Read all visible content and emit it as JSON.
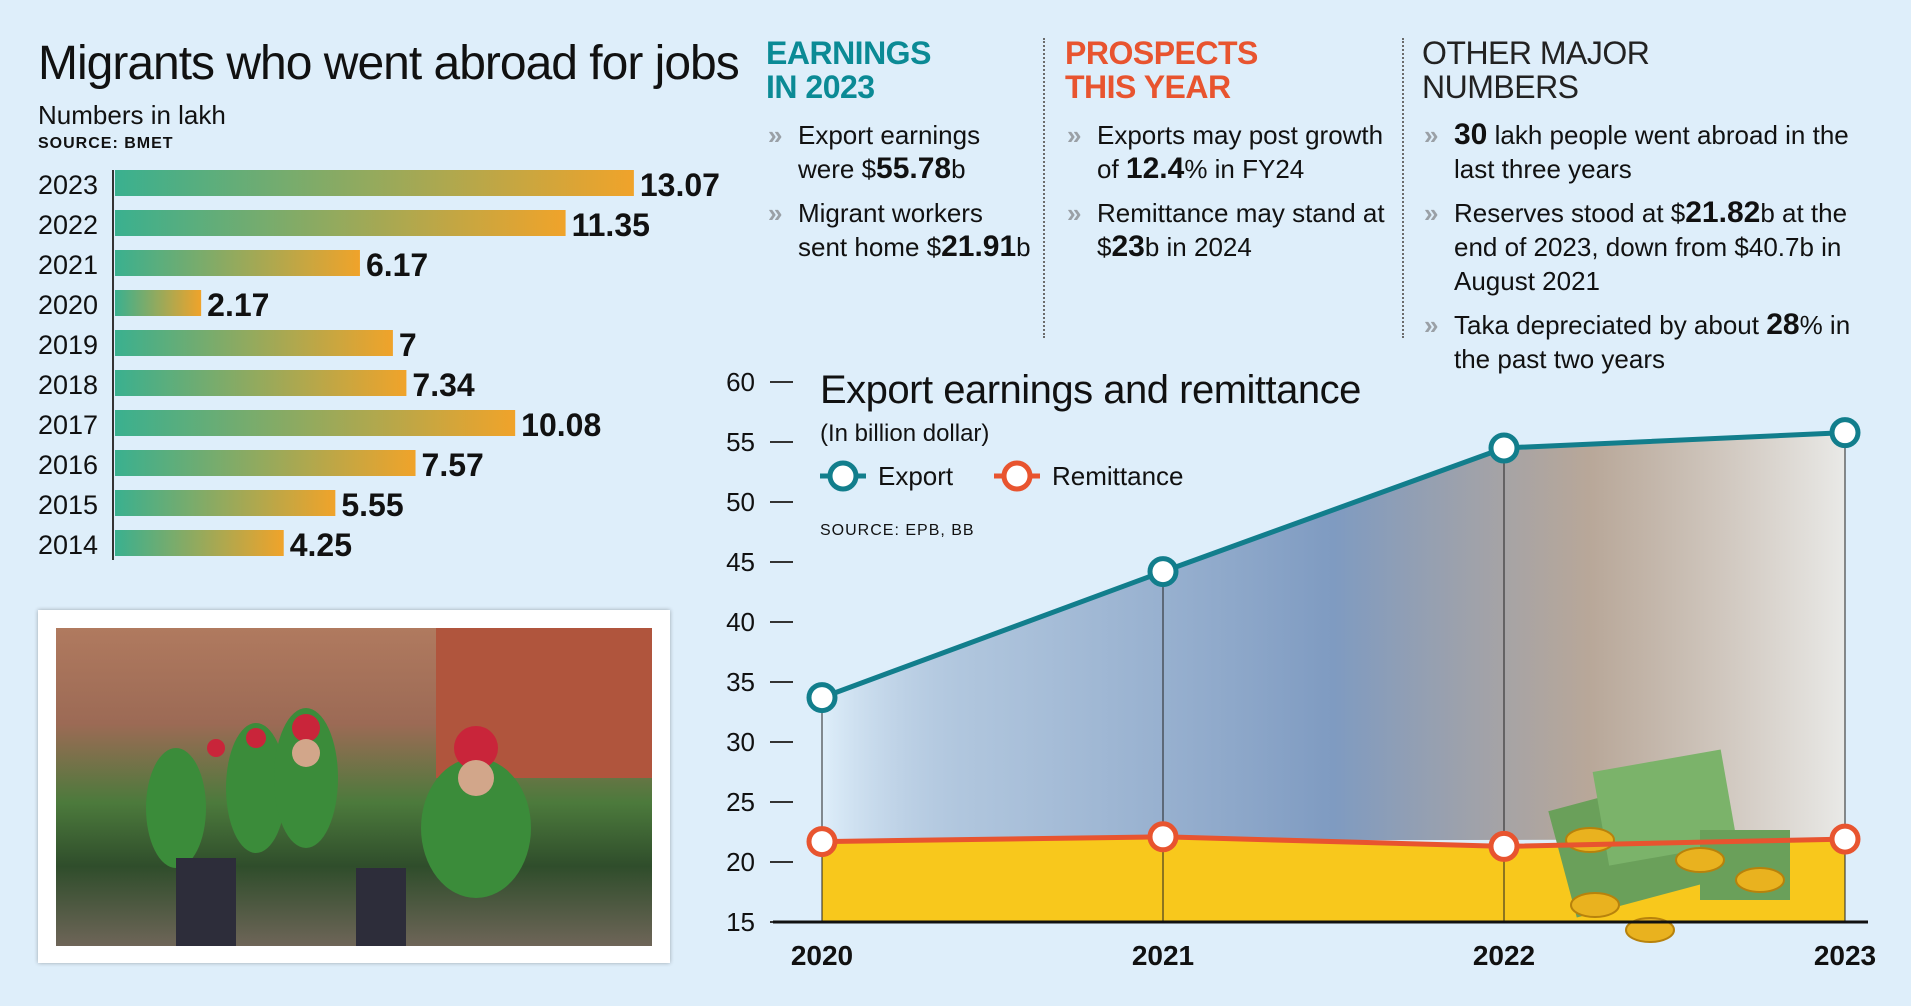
{
  "left": {
    "title": "Migrants who went abroad for jobs",
    "subtitle": "Numbers in lakh",
    "source": "SOURCE: BMET"
  },
  "columns": [
    {
      "heading_line1": "EARNINGS",
      "heading_line2": "IN 2023",
      "color": "#0b8a95",
      "items": [
        [
          "Export earnings were ",
          "$",
          "55.78",
          "b"
        ],
        [
          "Migrant workers sent home ",
          "$",
          "21.91",
          "b"
        ]
      ]
    },
    {
      "heading_line1": "PROSPECTS",
      "heading_line2": "THIS YEAR",
      "color": "#e8542f",
      "items": [
        [
          "Exports may post growth of ",
          "",
          "12.4",
          "% in FY24"
        ],
        [
          "Remittance may stand at ",
          "$",
          "23",
          "b in 2024"
        ]
      ]
    },
    {
      "heading_line1": "OTHER MAJOR",
      "heading_line2": "NUMBERS",
      "color": "#222222",
      "items": [
        [
          "",
          "",
          "30",
          " lakh people went abroad in the last three years"
        ],
        [
          "Reserves stood at $",
          "",
          "21.82",
          "b at the end of 2023, down from $40.7b in August 2021"
        ],
        [
          "Taka depreciated by about ",
          "",
          "28",
          "% in the past two years"
        ]
      ]
    }
  ],
  "chart2": {
    "title": "Export earnings and remittance",
    "subtitle": "(In billion dollar)",
    "source": "SOURCE: EPB, BB",
    "legend_export": "Export",
    "legend_remittance": "Remittance"
  },
  "chart_data": [
    {
      "type": "bar",
      "orientation": "horizontal",
      "categories": [
        "2023",
        "2022",
        "2021",
        "2020",
        "2019",
        "2018",
        "2017",
        "2016",
        "2015",
        "2014"
      ],
      "values": [
        13.07,
        11.35,
        6.17,
        2.17,
        7,
        7.34,
        10.08,
        7.57,
        5.55,
        4.25
      ],
      "value_labels": [
        "13.07",
        "11.35",
        "6.17",
        "2.17",
        "7",
        "7.34",
        "10.08",
        "7.57",
        "5.55",
        "4.25"
      ],
      "title": "Migrants who went abroad for jobs",
      "subtitle": "Numbers in lakh",
      "colors": {
        "start": "#3ab08f",
        "end": "#f0a32a"
      }
    },
    {
      "type": "line",
      "x": [
        "2020",
        "2021",
        "2022",
        "2023"
      ],
      "series": [
        {
          "name": "Export",
          "values": [
            33.7,
            44.2,
            54.5,
            55.78
          ],
          "color": "#127e8c"
        },
        {
          "name": "Remittance",
          "values": [
            21.7,
            22.1,
            21.3,
            21.91
          ],
          "color": "#e8542f",
          "fill": "#f8c81c"
        }
      ],
      "ylim": [
        15,
        60
      ],
      "yticks": [
        "15",
        "20",
        "25",
        "30",
        "35",
        "40",
        "45",
        "50",
        "55",
        "60"
      ],
      "title": "Export earnings and remittance",
      "subtitle": "(In billion dollar)"
    }
  ]
}
